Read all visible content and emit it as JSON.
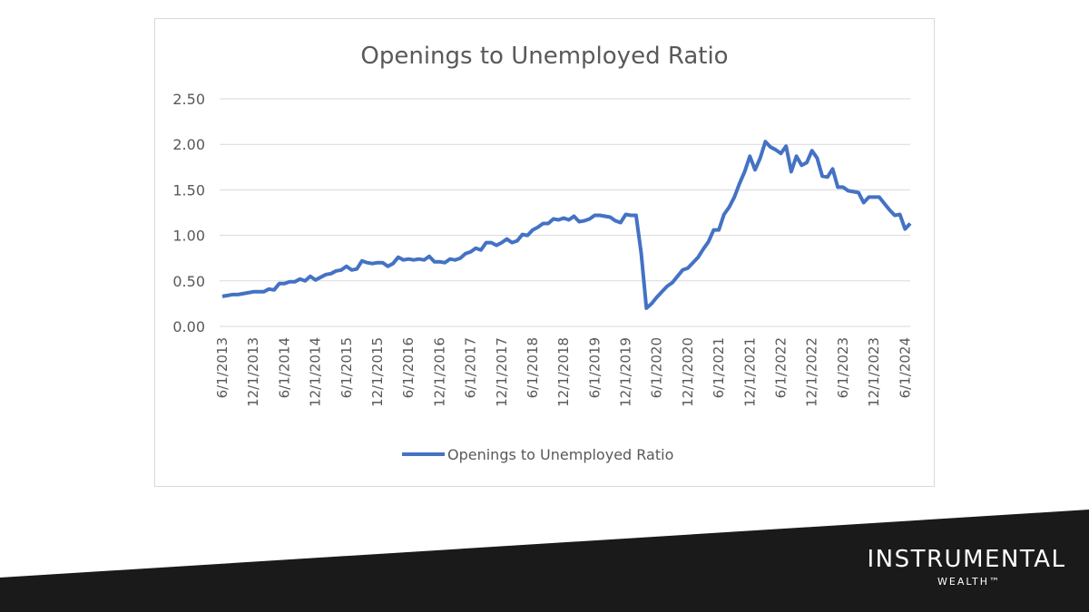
{
  "chart_data": {
    "type": "line",
    "title": "Openings to Unemployed Ratio",
    "categories": [
      "6/1/2013",
      null,
      null,
      null,
      null,
      null,
      "12/1/2013",
      null,
      null,
      null,
      null,
      null,
      "6/1/2014",
      null,
      null,
      null,
      null,
      null,
      "12/1/2014",
      null,
      null,
      null,
      null,
      null,
      "6/1/2015",
      null,
      null,
      null,
      null,
      null,
      "12/1/2015",
      null,
      null,
      null,
      null,
      null,
      "6/1/2016",
      null,
      null,
      null,
      null,
      null,
      "12/1/2016",
      null,
      null,
      null,
      null,
      null,
      "6/1/2017",
      null,
      null,
      null,
      null,
      null,
      "12/1/2017",
      null,
      null,
      null,
      null,
      null,
      "6/1/2018",
      null,
      null,
      null,
      null,
      null,
      "12/1/2018",
      null,
      null,
      null,
      null,
      null,
      "6/1/2019",
      null,
      null,
      null,
      null,
      null,
      "12/1/2019",
      null,
      null,
      null,
      null,
      null,
      "6/1/2020",
      null,
      null,
      null,
      null,
      null,
      "12/1/2020",
      null,
      null,
      null,
      null,
      null,
      "6/1/2021",
      null,
      null,
      null,
      null,
      null,
      "12/1/2021",
      null,
      null,
      null,
      null,
      null,
      "6/1/2022",
      null,
      null,
      null,
      null,
      null,
      "12/1/2022",
      null,
      null,
      null,
      null,
      null,
      "6/1/2023",
      null,
      null,
      null,
      null,
      null,
      "12/1/2023",
      null,
      null,
      null,
      null,
      null,
      "6/1/2024",
      null
    ],
    "series": [
      {
        "name": "Openings to Unemployed Ratio",
        "color": "#4472c4",
        "values": [
          0.33,
          0.34,
          0.35,
          0.35,
          0.36,
          0.37,
          0.38,
          0.38,
          0.38,
          0.41,
          0.4,
          0.47,
          0.47,
          0.49,
          0.49,
          0.52,
          0.5,
          0.55,
          0.51,
          0.54,
          0.57,
          0.58,
          0.61,
          0.62,
          0.66,
          0.62,
          0.63,
          0.72,
          0.7,
          0.69,
          0.7,
          0.7,
          0.66,
          0.69,
          0.76,
          0.73,
          0.74,
          0.73,
          0.74,
          0.73,
          0.77,
          0.71,
          0.71,
          0.7,
          0.74,
          0.73,
          0.75,
          0.8,
          0.82,
          0.86,
          0.84,
          0.92,
          0.92,
          0.89,
          0.92,
          0.96,
          0.92,
          0.94,
          1.01,
          1.0,
          1.06,
          1.09,
          1.13,
          1.13,
          1.18,
          1.17,
          1.19,
          1.17,
          1.21,
          1.15,
          1.16,
          1.18,
          1.22,
          1.22,
          1.21,
          1.2,
          1.16,
          1.14,
          1.23,
          1.22,
          1.22,
          0.8,
          0.2,
          0.25,
          0.32,
          0.38,
          0.44,
          0.48,
          0.55,
          0.62,
          0.64,
          0.7,
          0.76,
          0.85,
          0.93,
          1.06,
          1.06,
          1.23,
          1.31,
          1.42,
          1.57,
          1.7,
          1.87,
          1.72,
          1.85,
          2.03,
          1.97,
          1.94,
          1.9,
          1.98,
          1.7,
          1.87,
          1.77,
          1.8,
          1.93,
          1.85,
          1.65,
          1.64,
          1.73,
          1.53,
          1.53,
          1.49,
          1.48,
          1.47,
          1.36,
          1.42,
          1.42,
          1.42,
          1.35,
          1.28,
          1.22,
          1.23,
          1.07,
          1.13
        ]
      }
    ],
    "ylim": [
      0,
      2.5
    ],
    "yticks": [
      {
        "value": 0,
        "label": "0.00"
      },
      {
        "value": 0.5,
        "label": "0.50"
      },
      {
        "value": 1,
        "label": "1.00"
      },
      {
        "value": 1.5,
        "label": "1.50"
      },
      {
        "value": 2,
        "label": "2.00"
      },
      {
        "value": 2.5,
        "label": "2.50"
      }
    ],
    "grid": true,
    "legend": "bottom"
  },
  "brand": {
    "name": "INSTRUMENTAL",
    "sub": "WEALTH™"
  }
}
